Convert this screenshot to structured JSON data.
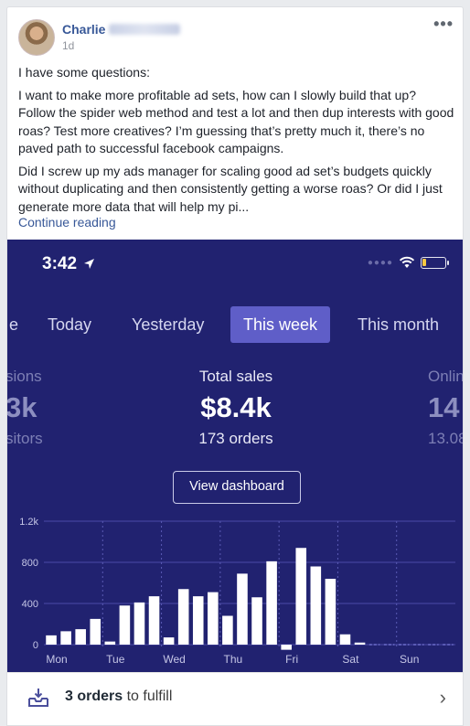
{
  "post": {
    "author_first_name": "Charlie",
    "timestamp": "1d",
    "more_label": "•••",
    "paragraphs": [
      "I have some questions:",
      "I want to make more profitable ad sets, how can I slowly build that up? Follow the spider web method and test a lot and then dup interests with good roas? Test more creatives? I’m guessing that’s pretty much it, there’s no paved path to successful facebook campaigns.",
      "Did I screw up my ads manager for scaling good ad set’s budgets quickly without duplicating and then consistently getting a worse roas? Or did I just generate more data that will help my pi..."
    ],
    "continue_label": "Continue reading"
  },
  "app": {
    "status_time": "3:42",
    "tabs": [
      {
        "label": "e"
      },
      {
        "label": "Today"
      },
      {
        "label": "Yesterday"
      },
      {
        "label": "This week"
      },
      {
        "label": "This month"
      }
    ],
    "metrics": {
      "left": {
        "label": "sions",
        "value": "3k",
        "sub": "sitors"
      },
      "center": {
        "label": "Total sales",
        "value": "$8.4k",
        "sub": "173 orders"
      },
      "right": {
        "label": "Onlin",
        "value": "14",
        "sub": "13.08"
      }
    },
    "dashboard_button": "View dashboard",
    "colors": {
      "background": "#212270",
      "bars": "#ffffff",
      "active_tab": "#5f5ec8",
      "gridline": "#4a4ba8"
    },
    "footer": {
      "count": "3 orders",
      "suffix": " to fulfill"
    }
  },
  "chart_data": {
    "type": "bar",
    "ylim": [
      0,
      1200
    ],
    "ytick_labels": [
      "0",
      "400",
      "800",
      "1.2k"
    ],
    "x_labels": [
      "Mon",
      "Tue",
      "Wed",
      "Thu",
      "Fri",
      "Sat",
      "Sun"
    ],
    "values": [
      90,
      130,
      150,
      250,
      30,
      380,
      410,
      470,
      70,
      540,
      470,
      510,
      280,
      690,
      460,
      810,
      -50,
      940,
      760,
      640,
      100,
      20,
      0,
      0,
      0,
      0,
      0,
      0
    ],
    "grid": true
  }
}
